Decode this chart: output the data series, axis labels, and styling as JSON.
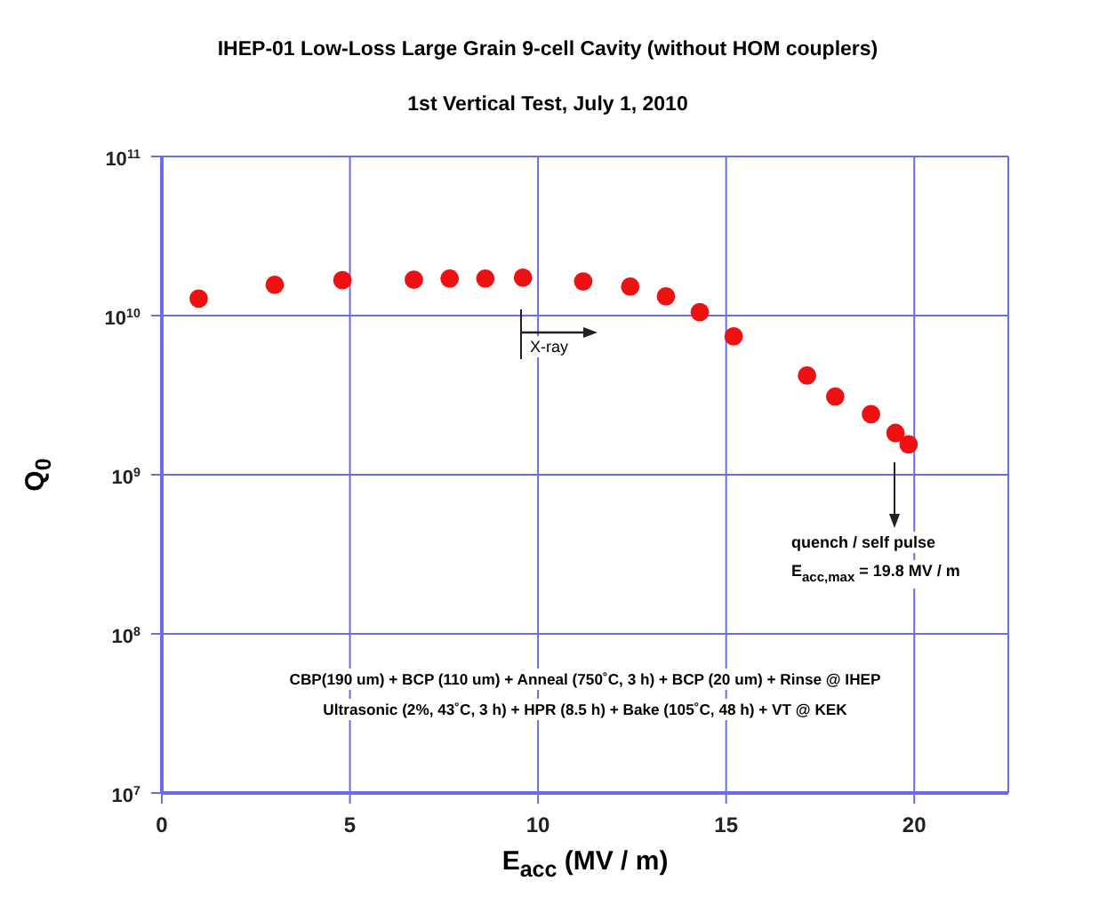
{
  "chart_data": {
    "type": "scatter",
    "title": "IHEP-01 Low-Loss Large Grain 9-cell Cavity (without HOM couplers)",
    "subtitle": "1st Vertical Test, July 1, 2010",
    "xlabel": "E$_{acc}$ (MV / m)",
    "ylabel": "Q$_{0}$",
    "x": [
      0.98,
      3.0,
      4.8,
      6.7,
      7.65,
      8.6,
      9.6,
      11.2,
      12.45,
      13.4,
      14.3,
      15.2,
      17.15,
      17.9,
      18.85,
      19.5,
      19.85
    ],
    "series": [
      {
        "color": "#ee1111",
        "values": [
          12800000000.0,
          15600000000.0,
          16700000000.0,
          16800000000.0,
          17100000000.0,
          17100000000.0,
          17300000000.0,
          16400000000.0,
          15200000000.0,
          13200000000.0,
          10500000000.0,
          7400000000.0,
          4200000000.0,
          3100000000.0,
          2400000000.0,
          1830000000.0,
          1550000000.0
        ]
      }
    ],
    "xlim": [
      0,
      22.5
    ],
    "xticks": [
      0,
      5,
      10,
      15,
      20
    ],
    "ylim": [
      10000000.0,
      100000000000.0
    ],
    "yticks": [
      {
        "value": 10000000.0,
        "label": "10$^{7}$"
      },
      {
        "value": 100000000.0,
        "label": "10$^{8}$"
      },
      {
        "value": 1000000000.0,
        "label": "10$^{9}$"
      },
      {
        "value": 10000000000.0,
        "label": "10$^{10}$"
      },
      {
        "value": 100000000000.0,
        "label": "10$^{11}$"
      }
    ],
    "log": "y",
    "grid": true,
    "marker": "circle",
    "legend": false,
    "annotations": [
      "X-ray",
      "quench / self pulse",
      "E$_{acc,max}$ = 19.8 MV / m",
      "CBP(190 um) + BCP (110 um) + Anneal (750˚C, 3 h) + BCP (20 um) + Rinse @ IHEP",
      "Ultrasonic (2%, 43˚C, 3 h) + HPR (8.5 h) + Bake (105˚C, 48 h) + VT @ KEK"
    ]
  }
}
